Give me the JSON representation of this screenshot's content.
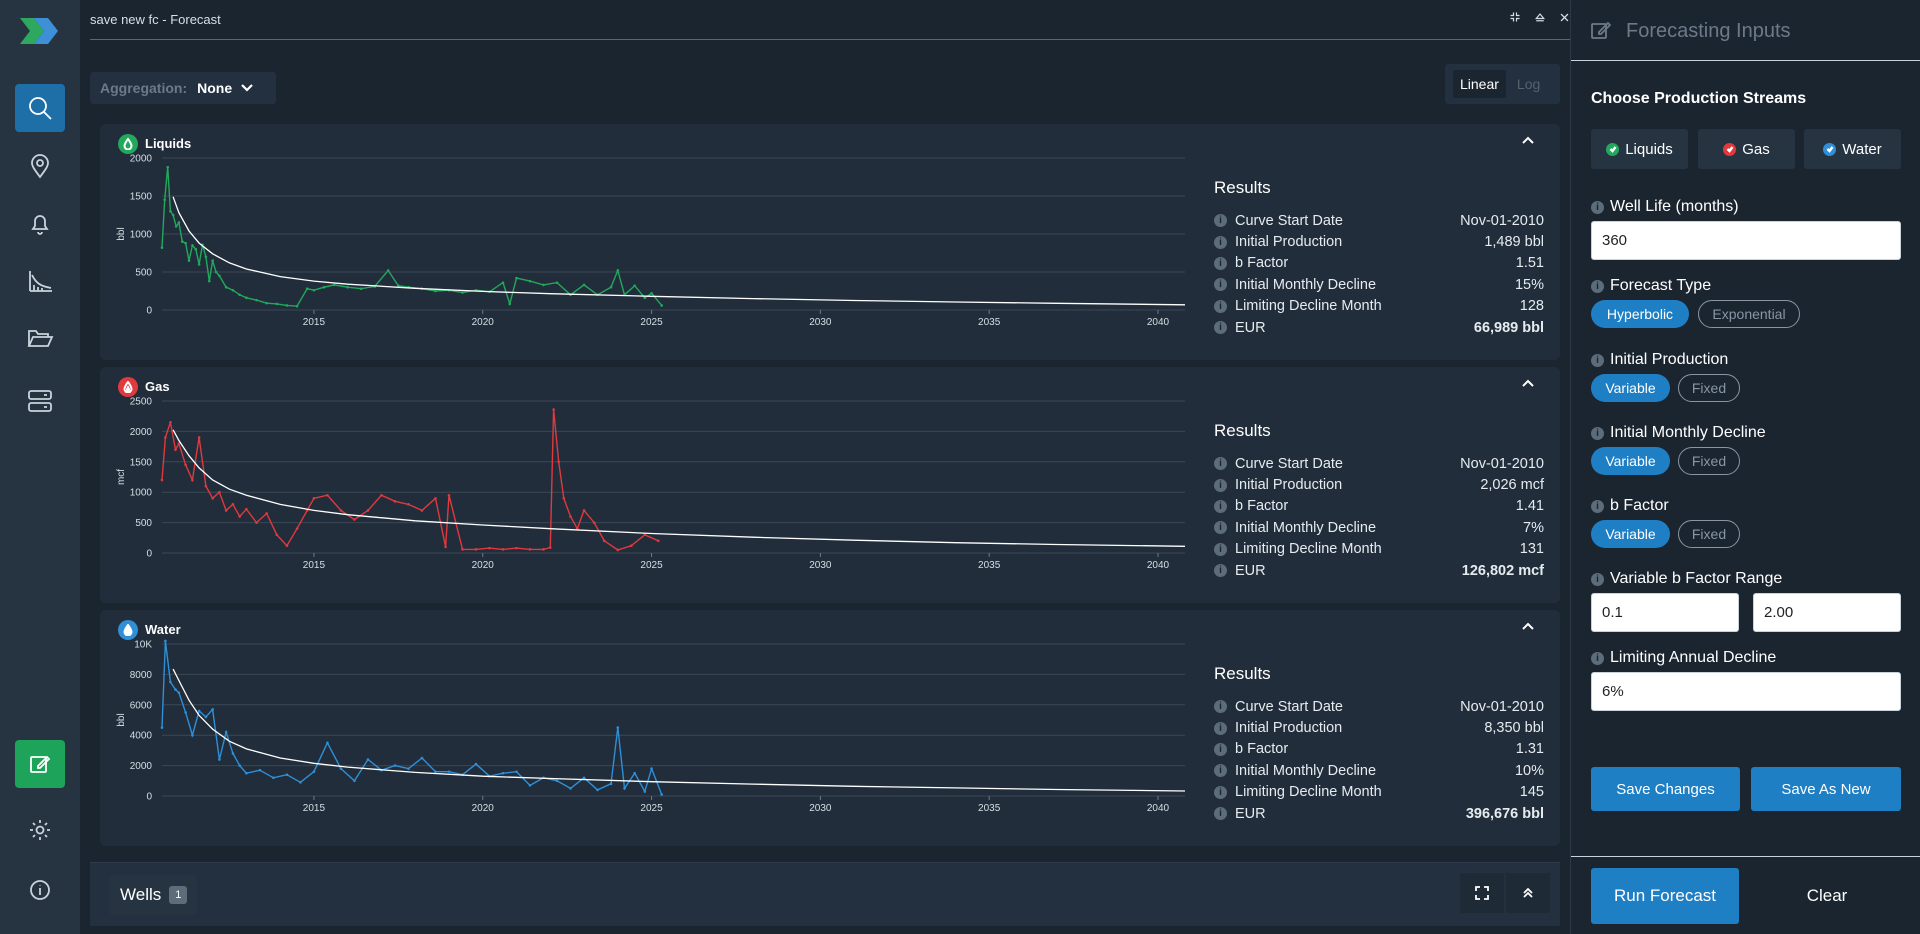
{
  "window": {
    "title": "save new fc - Forecast"
  },
  "toolbar": {
    "aggregation_label": "Aggregation:",
    "aggregation_value": "None",
    "scale_linear": "Linear",
    "scale_log": "Log"
  },
  "colors": {
    "liquids": "#22a85c",
    "gas": "#e0393e",
    "water": "#2f8fd8",
    "accent": "#1e7fc4"
  },
  "panels": [
    {
      "title": "Liquids",
      "icon": "droplet-icon",
      "results_title": "Results",
      "results": [
        {
          "label": "Curve Start Date",
          "value": "Nov-01-2010"
        },
        {
          "label": "Initial Production",
          "value": "1,489 bbl"
        },
        {
          "label": "b Factor",
          "value": "1.51"
        },
        {
          "label": "Initial Monthly Decline",
          "value": "15%"
        },
        {
          "label": "Limiting Decline Month",
          "value": "128"
        },
        {
          "label": "EUR",
          "value": "66,989 bbl"
        }
      ]
    },
    {
      "title": "Gas",
      "icon": "flame-icon",
      "results_title": "Results",
      "results": [
        {
          "label": "Curve Start Date",
          "value": "Nov-01-2010"
        },
        {
          "label": "Initial Production",
          "value": "2,026 mcf"
        },
        {
          "label": "b Factor",
          "value": "1.41"
        },
        {
          "label": "Initial Monthly Decline",
          "value": "7%"
        },
        {
          "label": "Limiting Decline Month",
          "value": "131"
        },
        {
          "label": "EUR",
          "value": "126,802 mcf"
        }
      ]
    },
    {
      "title": "Water",
      "icon": "water-drop-icon",
      "results_title": "Results",
      "results": [
        {
          "label": "Curve Start Date",
          "value": "Nov-01-2010"
        },
        {
          "label": "Initial Production",
          "value": "8,350 bbl"
        },
        {
          "label": "b Factor",
          "value": "1.31"
        },
        {
          "label": "Initial Monthly Decline",
          "value": "10%"
        },
        {
          "label": "Limiting Decline Month",
          "value": "145"
        },
        {
          "label": "EUR",
          "value": "396,676 bbl"
        }
      ]
    }
  ],
  "chart_data": [
    {
      "type": "line",
      "ylabel": "bbl",
      "ylim": [
        0,
        2000
      ],
      "yticks": [
        0,
        500,
        1000,
        1500,
        2000
      ],
      "ytick_labels": [
        "0",
        "500",
        "1000",
        "1500",
        "2000"
      ],
      "xlim": [
        2010.5,
        2040.8
      ],
      "xticks": [
        2015,
        2020,
        2025,
        2030,
        2035,
        2040
      ],
      "xtick_labels": [
        "2015",
        "2020",
        "2025",
        "2030",
        "2035",
        "2040"
      ],
      "series": [
        {
          "kind": "actual",
          "color": "#22a85c",
          "x": [
            2010.5,
            2010.58,
            2010.67,
            2010.75,
            2010.83,
            2010.92,
            2011.0,
            2011.1,
            2011.2,
            2011.3,
            2011.4,
            2011.5,
            2011.6,
            2011.7,
            2011.8,
            2011.9,
            2012.0,
            2012.1,
            2012.2,
            2012.4,
            2012.6,
            2012.8,
            2013.0,
            2013.3,
            2013.6,
            2013.9,
            2014.2,
            2014.5,
            2014.8,
            2015.0,
            2015.3,
            2015.6,
            2016.0,
            2016.4,
            2016.8,
            2017.2,
            2017.5,
            2017.8,
            2018.2,
            2018.6,
            2019.0,
            2019.4,
            2019.8,
            2020.2,
            2020.6,
            2020.8,
            2021.0,
            2021.4,
            2021.8,
            2022.2,
            2022.6,
            2023.0,
            2023.4,
            2023.8,
            2024.0,
            2024.2,
            2024.5,
            2024.8,
            2025.0,
            2025.3
          ],
          "y": [
            820,
            1450,
            1880,
            1300,
            1250,
            1100,
            1150,
            900,
            880,
            650,
            850,
            800,
            600,
            860,
            700,
            380,
            650,
            500,
            450,
            300,
            260,
            200,
            160,
            130,
            90,
            80,
            60,
            50,
            280,
            260,
            300,
            330,
            300,
            280,
            310,
            520,
            320,
            300,
            280,
            250,
            260,
            230,
            260,
            240,
            360,
            80,
            420,
            380,
            330,
            360,
            200,
            330,
            200,
            300,
            520,
            200,
            320,
            160,
            220,
            60
          ]
        },
        {
          "kind": "fit",
          "color": "#ffffff",
          "x": [
            2010.83,
            2011.0,
            2011.3,
            2011.6,
            2012.0,
            2012.5,
            2013.0,
            2014.0,
            2015.0,
            2016.0,
            2018.0,
            2020.0,
            2022.0,
            2025.0,
            2028.0,
            2031.0,
            2034.0,
            2037.0,
            2040.8
          ],
          "y": [
            1489,
            1280,
            1040,
            880,
            740,
            620,
            540,
            440,
            380,
            340,
            285,
            245,
            215,
            180,
            150,
            125,
            105,
            88,
            68
          ]
        }
      ]
    },
    {
      "type": "line",
      "ylabel": "mcf",
      "ylim": [
        0,
        2500
      ],
      "yticks": [
        0,
        500,
        1000,
        1500,
        2000,
        2500
      ],
      "ytick_labels": [
        "0",
        "500",
        "1000",
        "1500",
        "2000",
        "2500"
      ],
      "xlim": [
        2010.5,
        2040.8
      ],
      "xticks": [
        2015,
        2020,
        2025,
        2030,
        2035,
        2040
      ],
      "xtick_labels": [
        "2015",
        "2020",
        "2025",
        "2030",
        "2035",
        "2040"
      ],
      "series": [
        {
          "kind": "actual",
          "color": "#e0393e",
          "x": [
            2010.5,
            2010.6,
            2010.75,
            2010.9,
            2011.0,
            2011.2,
            2011.4,
            2011.6,
            2011.8,
            2012.0,
            2012.2,
            2012.4,
            2012.6,
            2012.8,
            2013.0,
            2013.3,
            2013.6,
            2013.9,
            2014.2,
            2014.5,
            2014.8,
            2015.0,
            2015.4,
            2015.8,
            2016.2,
            2016.6,
            2017.0,
            2017.4,
            2017.8,
            2018.2,
            2018.6,
            2018.9,
            2019.0,
            2019.4,
            2019.8,
            2020.2,
            2020.6,
            2021.0,
            2021.4,
            2021.8,
            2022.0,
            2022.1,
            2022.25,
            2022.4,
            2022.6,
            2022.8,
            2023.0,
            2023.3,
            2023.6,
            2024.0,
            2024.4,
            2024.8,
            2025.2
          ],
          "y": [
            1200,
            1900,
            2150,
            1700,
            1800,
            1450,
            1200,
            1900,
            1100,
            900,
            1000,
            700,
            800,
            600,
            720,
            500,
            650,
            300,
            120,
            400,
            700,
            900,
            950,
            700,
            550,
            700,
            950,
            850,
            800,
            700,
            900,
            100,
            950,
            60,
            60,
            80,
            60,
            80,
            60,
            60,
            90,
            2360,
            1500,
            900,
            600,
            400,
            700,
            500,
            200,
            50,
            120,
            300,
            200
          ]
        },
        {
          "kind": "fit",
          "color": "#ffffff",
          "x": [
            2010.83,
            2011.0,
            2011.3,
            2011.6,
            2012.0,
            2012.5,
            2013.0,
            2014.0,
            2015.0,
            2016.0,
            2018.0,
            2020.0,
            2022.0,
            2025.0,
            2028.0,
            2031.0,
            2034.0,
            2037.0,
            2040.8
          ],
          "y": [
            2026,
            1850,
            1600,
            1400,
            1200,
            1050,
            950,
            800,
            700,
            630,
            530,
            460,
            400,
            320,
            260,
            210,
            170,
            140,
            110
          ]
        }
      ]
    },
    {
      "type": "line",
      "ylabel": "bbl",
      "ylim": [
        0,
        10000
      ],
      "yticks": [
        0,
        2000,
        4000,
        6000,
        8000,
        10000
      ],
      "ytick_labels": [
        "0",
        "2000",
        "4000",
        "6000",
        "8000",
        "10K"
      ],
      "xlim": [
        2010.5,
        2040.8
      ],
      "xticks": [
        2015,
        2020,
        2025,
        2030,
        2035,
        2040
      ],
      "xtick_labels": [
        "2015",
        "2020",
        "2025",
        "2030",
        "2035",
        "2040"
      ],
      "series": [
        {
          "kind": "actual",
          "color": "#2f8fd8",
          "x": [
            2010.5,
            2010.6,
            2010.75,
            2010.9,
            2011.0,
            2011.2,
            2011.4,
            2011.6,
            2011.8,
            2012.0,
            2012.2,
            2012.4,
            2012.6,
            2012.8,
            2013.0,
            2013.4,
            2013.8,
            2014.2,
            2014.6,
            2015.0,
            2015.4,
            2015.8,
            2016.2,
            2016.6,
            2017.0,
            2017.4,
            2017.8,
            2018.2,
            2018.6,
            2019.0,
            2019.4,
            2019.8,
            2020.2,
            2020.6,
            2021.0,
            2021.4,
            2021.8,
            2022.2,
            2022.6,
            2023.0,
            2023.4,
            2023.8,
            2024.0,
            2024.2,
            2024.5,
            2024.8,
            2025.0,
            2025.3
          ],
          "y": [
            4500,
            10200,
            7500,
            7000,
            6800,
            5500,
            4000,
            5600,
            5200,
            5700,
            2400,
            4200,
            2800,
            2000,
            1500,
            1700,
            1200,
            1400,
            900,
            1600,
            3500,
            1800,
            1000,
            2400,
            1700,
            2000,
            1800,
            2500,
            1600,
            1600,
            1400,
            2100,
            1300,
            1500,
            1600,
            700,
            1200,
            1000,
            500,
            1200,
            400,
            800,
            4500,
            500,
            1500,
            300,
            1800,
            100
          ]
        },
        {
          "kind": "fit",
          "color": "#ffffff",
          "x": [
            2010.83,
            2011.0,
            2011.3,
            2011.6,
            2012.0,
            2012.5,
            2013.0,
            2014.0,
            2015.0,
            2016.0,
            2018.0,
            2020.0,
            2022.0,
            2025.0,
            2028.0,
            2031.0,
            2034.0,
            2037.0,
            2040.8
          ],
          "y": [
            8350,
            7600,
            6300,
            5300,
            4400,
            3600,
            3100,
            2500,
            2150,
            1900,
            1550,
            1300,
            1150,
            940,
            780,
            640,
            530,
            430,
            330
          ]
        }
      ]
    }
  ],
  "wells": {
    "label": "Wells",
    "count": "1"
  },
  "side": {
    "title": "Forecasting Inputs",
    "choose_label": "Choose Production Streams",
    "streams": [
      {
        "label": "Liquids",
        "color": "#22a85c"
      },
      {
        "label": "Gas",
        "color": "#e0393e"
      },
      {
        "label": "Water",
        "color": "#2f8fd8"
      }
    ],
    "well_life_label": "Well Life (months)",
    "well_life_value": "360",
    "forecast_type_label": "Forecast Type",
    "forecast_type_options": [
      "Hyperbolic",
      "Exponential"
    ],
    "initial_production_label": "Initial Production",
    "initial_monthly_decline_label": "Initial Monthly Decline",
    "b_factor_label": "b Factor",
    "toggle_options": [
      "Variable",
      "Fixed"
    ],
    "b_range_label": "Variable b Factor Range",
    "b_range_min": "0.1",
    "b_range_max": "2.00",
    "limiting_decline_label": "Limiting Annual Decline",
    "limiting_decline_value": "6%",
    "save_changes": "Save Changes",
    "save_as_new": "Save As New",
    "run_forecast": "Run Forecast",
    "clear": "Clear"
  }
}
